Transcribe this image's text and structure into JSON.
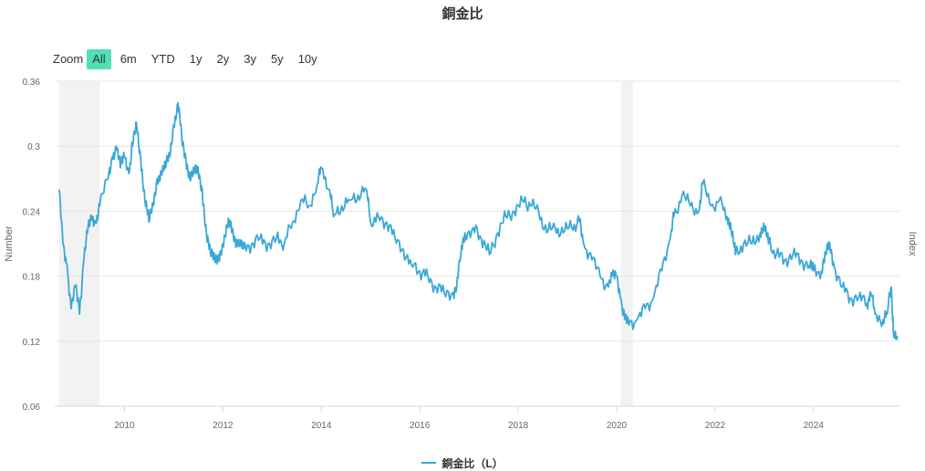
{
  "chart_data": {
    "type": "line",
    "title": "銅金比",
    "ylabel": "Number",
    "ylabel_right": "Index",
    "ylim": [
      0.06,
      0.36
    ],
    "yticks": [
      "0.36",
      "0.3",
      "0.24",
      "0.18",
      "0.12",
      "0.06"
    ],
    "xlim": [
      "2008-08-01",
      "2025-09-30"
    ],
    "xticks": [
      "2010",
      "2012",
      "2014",
      "2016",
      "2018",
      "2020",
      "2022",
      "2024"
    ],
    "shaded_ranges": [
      [
        "2008-09-01",
        "2009-06-30"
      ],
      [
        "2020-02-01",
        "2020-04-30"
      ]
    ],
    "legend_position": "bottom-center",
    "series": [
      {
        "name": "銅金比（L）",
        "color": "#3aa8d6",
        "points": [
          [
            "2008-09-01",
            0.26
          ],
          [
            "2008-10-01",
            0.21
          ],
          [
            "2008-11-01",
            0.19
          ],
          [
            "2008-12-01",
            0.15
          ],
          [
            "2009-01-01",
            0.17
          ],
          [
            "2009-02-01",
            0.145
          ],
          [
            "2009-03-01",
            0.19
          ],
          [
            "2009-04-01",
            0.22
          ],
          [
            "2009-05-01",
            0.235
          ],
          [
            "2009-06-01",
            0.23
          ],
          [
            "2009-07-01",
            0.245
          ],
          [
            "2009-09-01",
            0.27
          ],
          [
            "2009-10-01",
            0.29
          ],
          [
            "2009-11-01",
            0.3
          ],
          [
            "2009-12-01",
            0.28
          ],
          [
            "2010-01-01",
            0.29
          ],
          [
            "2010-02-01",
            0.275
          ],
          [
            "2010-03-01",
            0.3
          ],
          [
            "2010-04-01",
            0.32
          ],
          [
            "2010-05-01",
            0.29
          ],
          [
            "2010-06-01",
            0.25
          ],
          [
            "2010-07-01",
            0.23
          ],
          [
            "2010-08-01",
            0.245
          ],
          [
            "2010-09-01",
            0.27
          ],
          [
            "2010-10-01",
            0.275
          ],
          [
            "2010-11-01",
            0.28
          ],
          [
            "2010-12-01",
            0.29
          ],
          [
            "2011-01-01",
            0.32
          ],
          [
            "2011-02-01",
            0.34
          ],
          [
            "2011-03-01",
            0.31
          ],
          [
            "2011-04-01",
            0.29
          ],
          [
            "2011-05-01",
            0.27
          ],
          [
            "2011-06-01",
            0.275
          ],
          [
            "2011-07-01",
            0.28
          ],
          [
            "2011-08-01",
            0.26
          ],
          [
            "2011-09-01",
            0.22
          ],
          [
            "2011-10-01",
            0.2
          ],
          [
            "2011-11-01",
            0.195
          ],
          [
            "2011-12-01",
            0.2
          ],
          [
            "2012-01-01",
            0.21
          ],
          [
            "2012-02-01",
            0.225
          ],
          [
            "2012-03-01",
            0.23
          ],
          [
            "2012-04-01",
            0.215
          ],
          [
            "2012-05-01",
            0.21
          ],
          [
            "2012-06-01",
            0.205
          ],
          [
            "2012-08-01",
            0.21
          ],
          [
            "2012-10-01",
            0.215
          ],
          [
            "2012-12-01",
            0.21
          ],
          [
            "2013-02-01",
            0.215
          ],
          [
            "2013-04-01",
            0.21
          ],
          [
            "2013-06-01",
            0.23
          ],
          [
            "2013-08-01",
            0.25
          ],
          [
            "2013-10-01",
            0.245
          ],
          [
            "2013-12-01",
            0.265
          ],
          [
            "2014-01-01",
            0.28
          ],
          [
            "2014-03-01",
            0.26
          ],
          [
            "2014-04-01",
            0.235
          ],
          [
            "2014-06-01",
            0.245
          ],
          [
            "2014-08-01",
            0.25
          ],
          [
            "2014-10-01",
            0.255
          ],
          [
            "2014-12-01",
            0.26
          ],
          [
            "2015-01-01",
            0.23
          ],
          [
            "2015-03-01",
            0.235
          ],
          [
            "2015-05-01",
            0.23
          ],
          [
            "2015-07-01",
            0.215
          ],
          [
            "2015-09-01",
            0.205
          ],
          [
            "2015-11-01",
            0.19
          ],
          [
            "2016-01-01",
            0.185
          ],
          [
            "2016-03-01",
            0.18
          ],
          [
            "2016-05-01",
            0.17
          ],
          [
            "2016-07-01",
            0.165
          ],
          [
            "2016-09-01",
            0.165
          ],
          [
            "2016-10-01",
            0.17
          ],
          [
            "2016-11-01",
            0.2
          ],
          [
            "2016-12-01",
            0.22
          ],
          [
            "2017-02-01",
            0.225
          ],
          [
            "2017-04-01",
            0.215
          ],
          [
            "2017-06-01",
            0.2
          ],
          [
            "2017-08-01",
            0.22
          ],
          [
            "2017-10-01",
            0.235
          ],
          [
            "2017-12-01",
            0.24
          ],
          [
            "2018-02-01",
            0.25
          ],
          [
            "2018-04-01",
            0.245
          ],
          [
            "2018-06-01",
            0.24
          ],
          [
            "2018-08-01",
            0.22
          ],
          [
            "2018-10-01",
            0.225
          ],
          [
            "2018-12-01",
            0.22
          ],
          [
            "2019-02-01",
            0.225
          ],
          [
            "2019-04-01",
            0.23
          ],
          [
            "2019-05-01",
            0.21
          ],
          [
            "2019-07-01",
            0.195
          ],
          [
            "2019-09-01",
            0.18
          ],
          [
            "2019-11-01",
            0.17
          ],
          [
            "2019-12-01",
            0.18
          ],
          [
            "2020-01-01",
            0.18
          ],
          [
            "2020-02-01",
            0.16
          ],
          [
            "2020-03-01",
            0.14
          ],
          [
            "2020-04-01",
            0.135
          ],
          [
            "2020-06-01",
            0.14
          ],
          [
            "2020-08-01",
            0.15
          ],
          [
            "2020-10-01",
            0.16
          ],
          [
            "2020-12-01",
            0.185
          ],
          [
            "2021-02-01",
            0.215
          ],
          [
            "2021-03-01",
            0.235
          ],
          [
            "2021-05-01",
            0.255
          ],
          [
            "2021-07-01",
            0.245
          ],
          [
            "2021-09-01",
            0.24
          ],
          [
            "2021-10-01",
            0.265
          ],
          [
            "2021-12-01",
            0.245
          ],
          [
            "2022-02-01",
            0.25
          ],
          [
            "2022-04-01",
            0.235
          ],
          [
            "2022-05-01",
            0.22
          ],
          [
            "2022-06-01",
            0.2
          ],
          [
            "2022-08-01",
            0.21
          ],
          [
            "2022-10-01",
            0.21
          ],
          [
            "2022-12-01",
            0.22
          ],
          [
            "2023-01-01",
            0.225
          ],
          [
            "2023-02-01",
            0.21
          ],
          [
            "2023-04-01",
            0.2
          ],
          [
            "2023-06-01",
            0.195
          ],
          [
            "2023-08-01",
            0.2
          ],
          [
            "2023-10-01",
            0.195
          ],
          [
            "2023-12-01",
            0.19
          ],
          [
            "2024-01-01",
            0.185
          ],
          [
            "2024-03-01",
            0.185
          ],
          [
            "2024-04-01",
            0.2
          ],
          [
            "2024-05-01",
            0.21
          ],
          [
            "2024-06-01",
            0.19
          ],
          [
            "2024-08-01",
            0.17
          ],
          [
            "2024-10-01",
            0.16
          ],
          [
            "2024-12-01",
            0.16
          ],
          [
            "2025-02-01",
            0.155
          ],
          [
            "2025-03-01",
            0.165
          ],
          [
            "2025-04-01",
            0.145
          ],
          [
            "2025-06-01",
            0.14
          ],
          [
            "2025-07-01",
            0.145
          ],
          [
            "2025-08-01",
            0.17
          ],
          [
            "2025-08-15",
            0.13
          ],
          [
            "2025-09-15",
            0.125
          ]
        ]
      }
    ]
  },
  "range_selector": {
    "label": "Zoom",
    "buttons": [
      "All",
      "6m",
      "YTD",
      "1y",
      "2y",
      "3y",
      "5y",
      "10y"
    ],
    "selected": "All",
    "active_color": "#4fe0b6"
  }
}
